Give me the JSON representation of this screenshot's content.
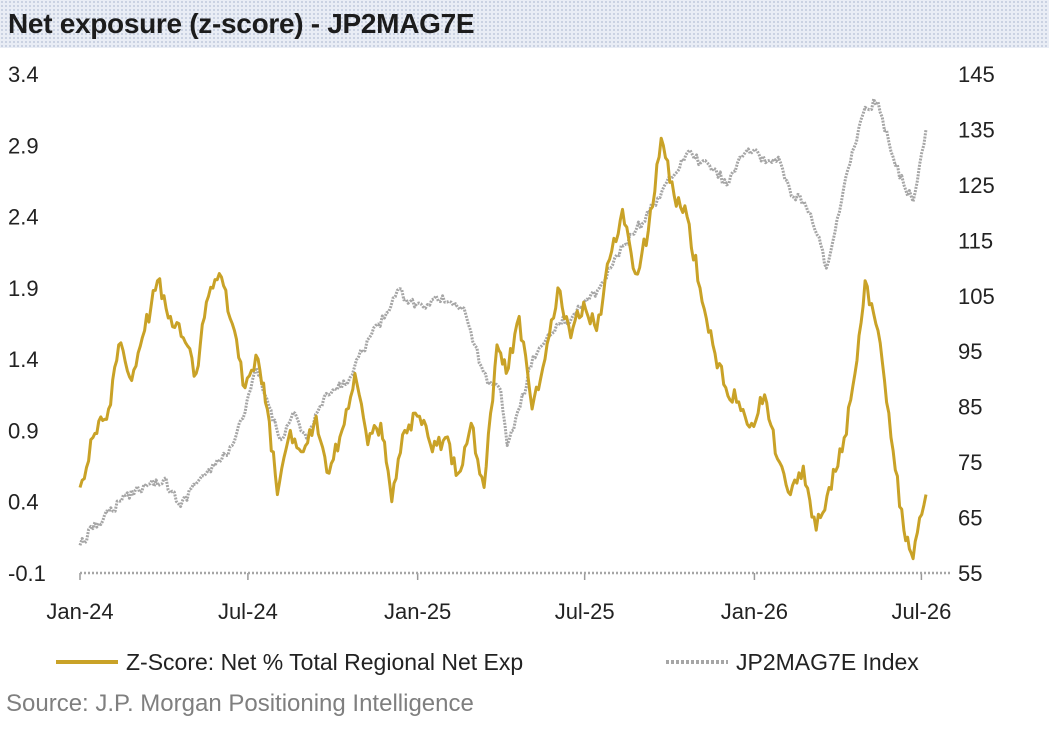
{
  "title": "Net exposure (z-score) - JP2MAG7E",
  "source": "Source: J.P. Morgan Positioning Intelligence",
  "chart_data": {
    "type": "line",
    "title": "Net exposure (z-score) - JP2MAG7E",
    "xlabel": "",
    "ylabel": "",
    "x_ticks": [
      "Jan-24",
      "Jul-24",
      "Jan-25",
      "Jul-25",
      "Jan-26",
      "Jul-26"
    ],
    "x_tick_dates": [
      "2024-01-01",
      "2024-07-01",
      "2025-01-01",
      "2025-07-01",
      "2026-01-01",
      "2026-07-01"
    ],
    "xlim": [
      "2024-01-01",
      "2026-08-01"
    ],
    "y_left": {
      "min": -0.1,
      "max": 3.4,
      "ticks": [
        "3.4",
        "2.9",
        "2.4",
        "1.9",
        "1.4",
        "0.9",
        "0.4",
        "-0.1"
      ]
    },
    "y_right": {
      "min": 55,
      "max": 145,
      "ticks": [
        "145",
        "135",
        "125",
        "115",
        "105",
        "95",
        "85",
        "75",
        "65",
        "55"
      ]
    },
    "grid": false,
    "legend_position": "bottom",
    "series": [
      {
        "name": "Z-Score: Net % Total Regional Net Exp",
        "axis": "left",
        "color": "#c9a227",
        "points": [
          [
            "2024-01-01",
            0.5
          ],
          [
            "2024-01-15",
            0.85
          ],
          [
            "2024-02-01",
            1.05
          ],
          [
            "2024-02-12",
            1.5
          ],
          [
            "2024-02-26",
            1.25
          ],
          [
            "2024-03-11",
            1.6
          ],
          [
            "2024-03-25",
            1.95
          ],
          [
            "2024-04-08",
            1.7
          ],
          [
            "2024-04-22",
            1.55
          ],
          [
            "2024-05-06",
            1.3
          ],
          [
            "2024-05-17",
            1.8
          ],
          [
            "2024-05-31",
            2.0
          ],
          [
            "2024-06-14",
            1.65
          ],
          [
            "2024-06-28",
            1.2
          ],
          [
            "2024-07-12",
            1.4
          ],
          [
            "2024-07-22",
            1.05
          ],
          [
            "2024-08-02",
            0.45
          ],
          [
            "2024-08-16",
            0.9
          ],
          [
            "2024-08-30",
            0.75
          ],
          [
            "2024-09-13",
            1.0
          ],
          [
            "2024-09-27",
            0.6
          ],
          [
            "2024-10-11",
            0.9
          ],
          [
            "2024-10-25",
            1.3
          ],
          [
            "2024-11-08",
            0.8
          ],
          [
            "2024-11-22",
            0.95
          ],
          [
            "2024-12-04",
            0.4
          ],
          [
            "2024-12-18",
            0.9
          ],
          [
            "2025-01-03",
            1.0
          ],
          [
            "2025-01-17",
            0.75
          ],
          [
            "2025-01-31",
            0.85
          ],
          [
            "2025-02-14",
            0.6
          ],
          [
            "2025-02-28",
            0.95
          ],
          [
            "2025-03-14",
            0.5
          ],
          [
            "2025-03-28",
            1.5
          ],
          [
            "2025-04-07",
            1.3
          ],
          [
            "2025-04-21",
            1.7
          ],
          [
            "2025-05-05",
            1.05
          ],
          [
            "2025-05-19",
            1.4
          ],
          [
            "2025-06-02",
            1.9
          ],
          [
            "2025-06-16",
            1.55
          ],
          [
            "2025-06-30",
            1.8
          ],
          [
            "2025-07-14",
            1.6
          ],
          [
            "2025-07-28",
            2.1
          ],
          [
            "2025-08-11",
            2.45
          ],
          [
            "2025-08-25",
            2.0
          ],
          [
            "2025-09-08",
            2.3
          ],
          [
            "2025-09-22",
            2.95
          ],
          [
            "2025-10-06",
            2.55
          ],
          [
            "2025-10-20",
            2.4
          ],
          [
            "2025-11-03",
            1.9
          ],
          [
            "2025-11-17",
            1.5
          ],
          [
            "2025-12-01",
            1.2
          ],
          [
            "2025-12-15",
            1.1
          ],
          [
            "2025-12-29",
            0.95
          ],
          [
            "2026-01-12",
            1.15
          ],
          [
            "2026-01-26",
            0.7
          ],
          [
            "2026-02-09",
            0.45
          ],
          [
            "2026-02-23",
            0.65
          ],
          [
            "2026-03-09",
            0.2
          ],
          [
            "2026-03-23",
            0.5
          ],
          [
            "2026-04-06",
            0.75
          ],
          [
            "2026-04-20",
            1.3
          ],
          [
            "2026-05-01",
            1.95
          ],
          [
            "2026-05-15",
            1.6
          ],
          [
            "2026-05-29",
            0.85
          ],
          [
            "2026-06-12",
            0.2
          ],
          [
            "2026-06-22",
            0.0
          ],
          [
            "2026-07-06",
            0.45
          ]
        ]
      },
      {
        "name": "JP2MAG7E Index",
        "axis": "right",
        "color": "#a6a6a6",
        "points": [
          [
            "2024-01-01",
            60
          ],
          [
            "2024-01-15",
            63
          ],
          [
            "2024-02-01",
            66
          ],
          [
            "2024-02-15",
            68
          ],
          [
            "2024-03-01",
            70
          ],
          [
            "2024-03-15",
            71
          ],
          [
            "2024-04-01",
            72
          ],
          [
            "2024-04-19",
            67
          ],
          [
            "2024-05-03",
            71
          ],
          [
            "2024-05-17",
            73
          ],
          [
            "2024-05-31",
            75
          ],
          [
            "2024-06-14",
            78
          ],
          [
            "2024-06-28",
            84
          ],
          [
            "2024-07-10",
            92
          ],
          [
            "2024-07-24",
            85
          ],
          [
            "2024-08-05",
            79
          ],
          [
            "2024-08-19",
            84
          ],
          [
            "2024-09-03",
            79
          ],
          [
            "2024-09-17",
            85
          ],
          [
            "2024-10-01",
            88
          ],
          [
            "2024-10-15",
            89
          ],
          [
            "2024-10-29",
            94
          ],
          [
            "2024-11-12",
            98
          ],
          [
            "2024-11-26",
            101
          ],
          [
            "2024-12-10",
            106
          ],
          [
            "2024-12-24",
            104
          ],
          [
            "2025-01-07",
            103
          ],
          [
            "2025-01-21",
            105
          ],
          [
            "2025-02-04",
            104
          ],
          [
            "2025-02-18",
            103
          ],
          [
            "2025-03-04",
            96
          ],
          [
            "2025-03-18",
            89
          ],
          [
            "2025-04-01",
            88
          ],
          [
            "2025-04-08",
            78
          ],
          [
            "2025-04-22",
            85
          ],
          [
            "2025-05-06",
            94
          ],
          [
            "2025-05-20",
            97
          ],
          [
            "2025-06-03",
            100
          ],
          [
            "2025-06-17",
            101
          ],
          [
            "2025-07-01",
            104
          ],
          [
            "2025-07-15",
            106
          ],
          [
            "2025-07-29",
            110
          ],
          [
            "2025-08-12",
            114
          ],
          [
            "2025-08-26",
            117
          ],
          [
            "2025-09-09",
            120
          ],
          [
            "2025-09-23",
            124
          ],
          [
            "2025-10-07",
            127
          ],
          [
            "2025-10-21",
            131
          ],
          [
            "2025-11-04",
            129
          ],
          [
            "2025-11-18",
            128
          ],
          [
            "2025-12-02",
            125
          ],
          [
            "2025-12-16",
            130
          ],
          [
            "2025-12-30",
            131
          ],
          [
            "2026-01-13",
            129
          ],
          [
            "2026-01-27",
            130
          ],
          [
            "2026-02-10",
            123
          ],
          [
            "2026-02-24",
            122
          ],
          [
            "2026-03-10",
            116
          ],
          [
            "2026-03-20",
            110
          ],
          [
            "2026-04-03",
            120
          ],
          [
            "2026-04-17",
            131
          ],
          [
            "2026-05-01",
            139
          ],
          [
            "2026-05-15",
            140
          ],
          [
            "2026-05-29",
            131
          ],
          [
            "2026-06-12",
            125
          ],
          [
            "2026-06-22",
            122
          ],
          [
            "2026-07-06",
            135
          ]
        ]
      }
    ],
    "baseline": {
      "axis": "left",
      "value": -0.1,
      "color": "#a6a6a6"
    }
  }
}
